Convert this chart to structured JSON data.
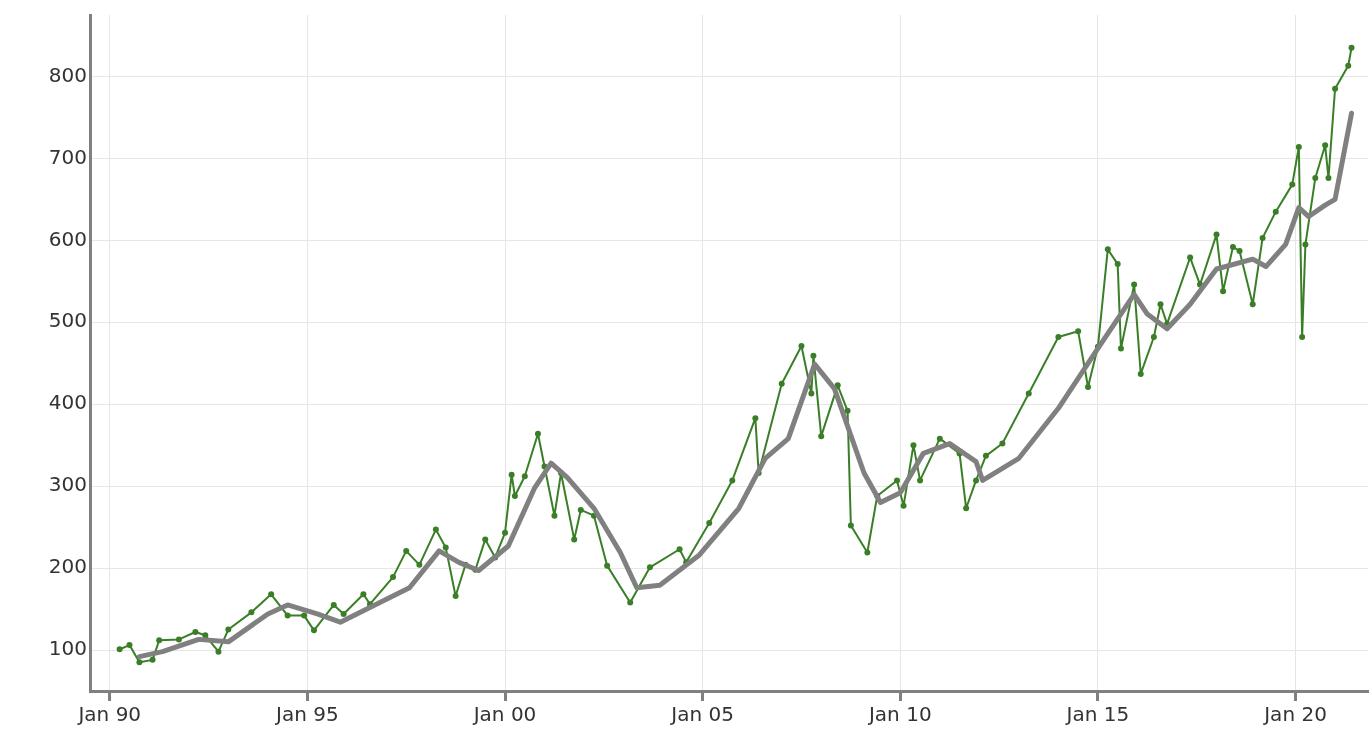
{
  "chart_data": {
    "type": "line",
    "xlim": [
      "1989-07",
      "2021-11"
    ],
    "ylim": [
      50,
      875
    ],
    "xticks": [
      {
        "value": "1990-01",
        "label": "Jan 90"
      },
      {
        "value": "1995-01",
        "label": "Jan 95"
      },
      {
        "value": "2000-01",
        "label": "Jan 00"
      },
      {
        "value": "2005-01",
        "label": "Jan 05"
      },
      {
        "value": "2010-01",
        "label": "Jan 10"
      },
      {
        "value": "2015-01",
        "label": "Jan 15"
      },
      {
        "value": "2020-01",
        "label": "Jan 20"
      }
    ],
    "yticks": [
      100,
      200,
      300,
      400,
      500,
      600,
      700,
      800
    ],
    "grid": true,
    "legend": false,
    "marker": "circle",
    "series": [
      {
        "color": "#808080",
        "marker": "none",
        "x": [
          "1990-10",
          "1991-05",
          "1992-04",
          "1993-01",
          "1994-01",
          "1994-07",
          "1995-04",
          "1995-11",
          "1996-11",
          "1997-08",
          "1998-05",
          "1998-11",
          "1999-05",
          "2000-02",
          "2000-10",
          "2001-03",
          "2001-08",
          "2002-04",
          "2002-12",
          "2003-05",
          "2003-12",
          "2004-12",
          "2005-12",
          "2006-08",
          "2007-03",
          "2007-11",
          "2008-05",
          "2009-02",
          "2009-07",
          "2010-01",
          "2010-08",
          "2011-04",
          "2011-12",
          "2012-02",
          "2013-01",
          "2014-01",
          "2015-01",
          "2015-12",
          "2016-04",
          "2016-10",
          "2017-05",
          "2018-01",
          "2018-12",
          "2019-04",
          "2019-10",
          "2020-02",
          "2020-05",
          "2020-10",
          "2021-01",
          "2021-06"
        ],
        "values": [
          92,
          98,
          113,
          110,
          144,
          155,
          144,
          134,
          158,
          176,
          221,
          207,
          197,
          227,
          298,
          328,
          310,
          273,
          219,
          176,
          179,
          216,
          273,
          334,
          358,
          449,
          419,
          316,
          280,
          292,
          340,
          352,
          330,
          307,
          334,
          395,
          468,
          534,
          510,
          492,
          522,
          565,
          577,
          568,
          595,
          640,
          629,
          643,
          650,
          755
        ]
      },
      {
        "color": "#3a7f28",
        "x": [
          "1990-04",
          "1990-07",
          "1990-10",
          "1991-02",
          "1991-04",
          "1991-10",
          "1992-03",
          "1992-06",
          "1992-10",
          "1993-01",
          "1993-08",
          "1994-02",
          "1994-07",
          "1994-12",
          "1995-03",
          "1995-09",
          "1995-12",
          "1996-06",
          "1996-08",
          "1997-03",
          "1997-07",
          "1997-11",
          "1998-04",
          "1998-07",
          "1998-10",
          "1999-01",
          "1999-04",
          "1999-07",
          "1999-10",
          "2000-01",
          "2000-03",
          "2000-04",
          "2000-07",
          "2000-11",
          "2001-01",
          "2001-04",
          "2001-06",
          "2001-10",
          "2001-12",
          "2002-04",
          "2002-08",
          "2003-03",
          "2003-09",
          "2004-06",
          "2004-08",
          "2005-03",
          "2005-10",
          "2006-05",
          "2006-06",
          "2007-01",
          "2007-07",
          "2007-10-01",
          "2007-10-20",
          "2008-01",
          "2008-06",
          "2008-09",
          "2008-10",
          "2009-03",
          "2009-06",
          "2009-12",
          "2010-02",
          "2010-05",
          "2010-07",
          "2011-01",
          "2011-07",
          "2011-09",
          "2011-12",
          "2012-03",
          "2012-08",
          "2013-04",
          "2014-01",
          "2014-07",
          "2014-10",
          "2015-01",
          "2015-04",
          "2015-07",
          "2015-08",
          "2015-12",
          "2016-02",
          "2016-06",
          "2016-08",
          "2016-10",
          "2017-05",
          "2017-08",
          "2018-01",
          "2018-03",
          "2018-06",
          "2018-08",
          "2018-12",
          "2019-03",
          "2019-07",
          "2019-12",
          "2020-02",
          "2020-03",
          "2020-04",
          "2020-07",
          "2020-10",
          "2020-11",
          "2021-01",
          "2021-05",
          "2021-06"
        ],
        "values": [
          101,
          106,
          85,
          88,
          112,
          113,
          122,
          118,
          98,
          125,
          146,
          168,
          142,
          142,
          124,
          155,
          144,
          168,
          156,
          189,
          221,
          204,
          247,
          225,
          166,
          204,
          198,
          235,
          213,
          243,
          314,
          288,
          312,
          364,
          324,
          264,
          316,
          235,
          271,
          264,
          203,
          158,
          201,
          223,
          207,
          255,
          307,
          383,
          316,
          425,
          471,
          413,
          459,
          361,
          423,
          392,
          252,
          219,
          288,
          307,
          276,
          350,
          307,
          358,
          340,
          273,
          307,
          337,
          352,
          413,
          482,
          489,
          421,
          470,
          589,
          571,
          468,
          546,
          437,
          482,
          522,
          498,
          579,
          546,
          607,
          538,
          592,
          587,
          522,
          603,
          635,
          668,
          714,
          482,
          595,
          676,
          716,
          676,
          785,
          813,
          835
        ]
      }
    ]
  }
}
